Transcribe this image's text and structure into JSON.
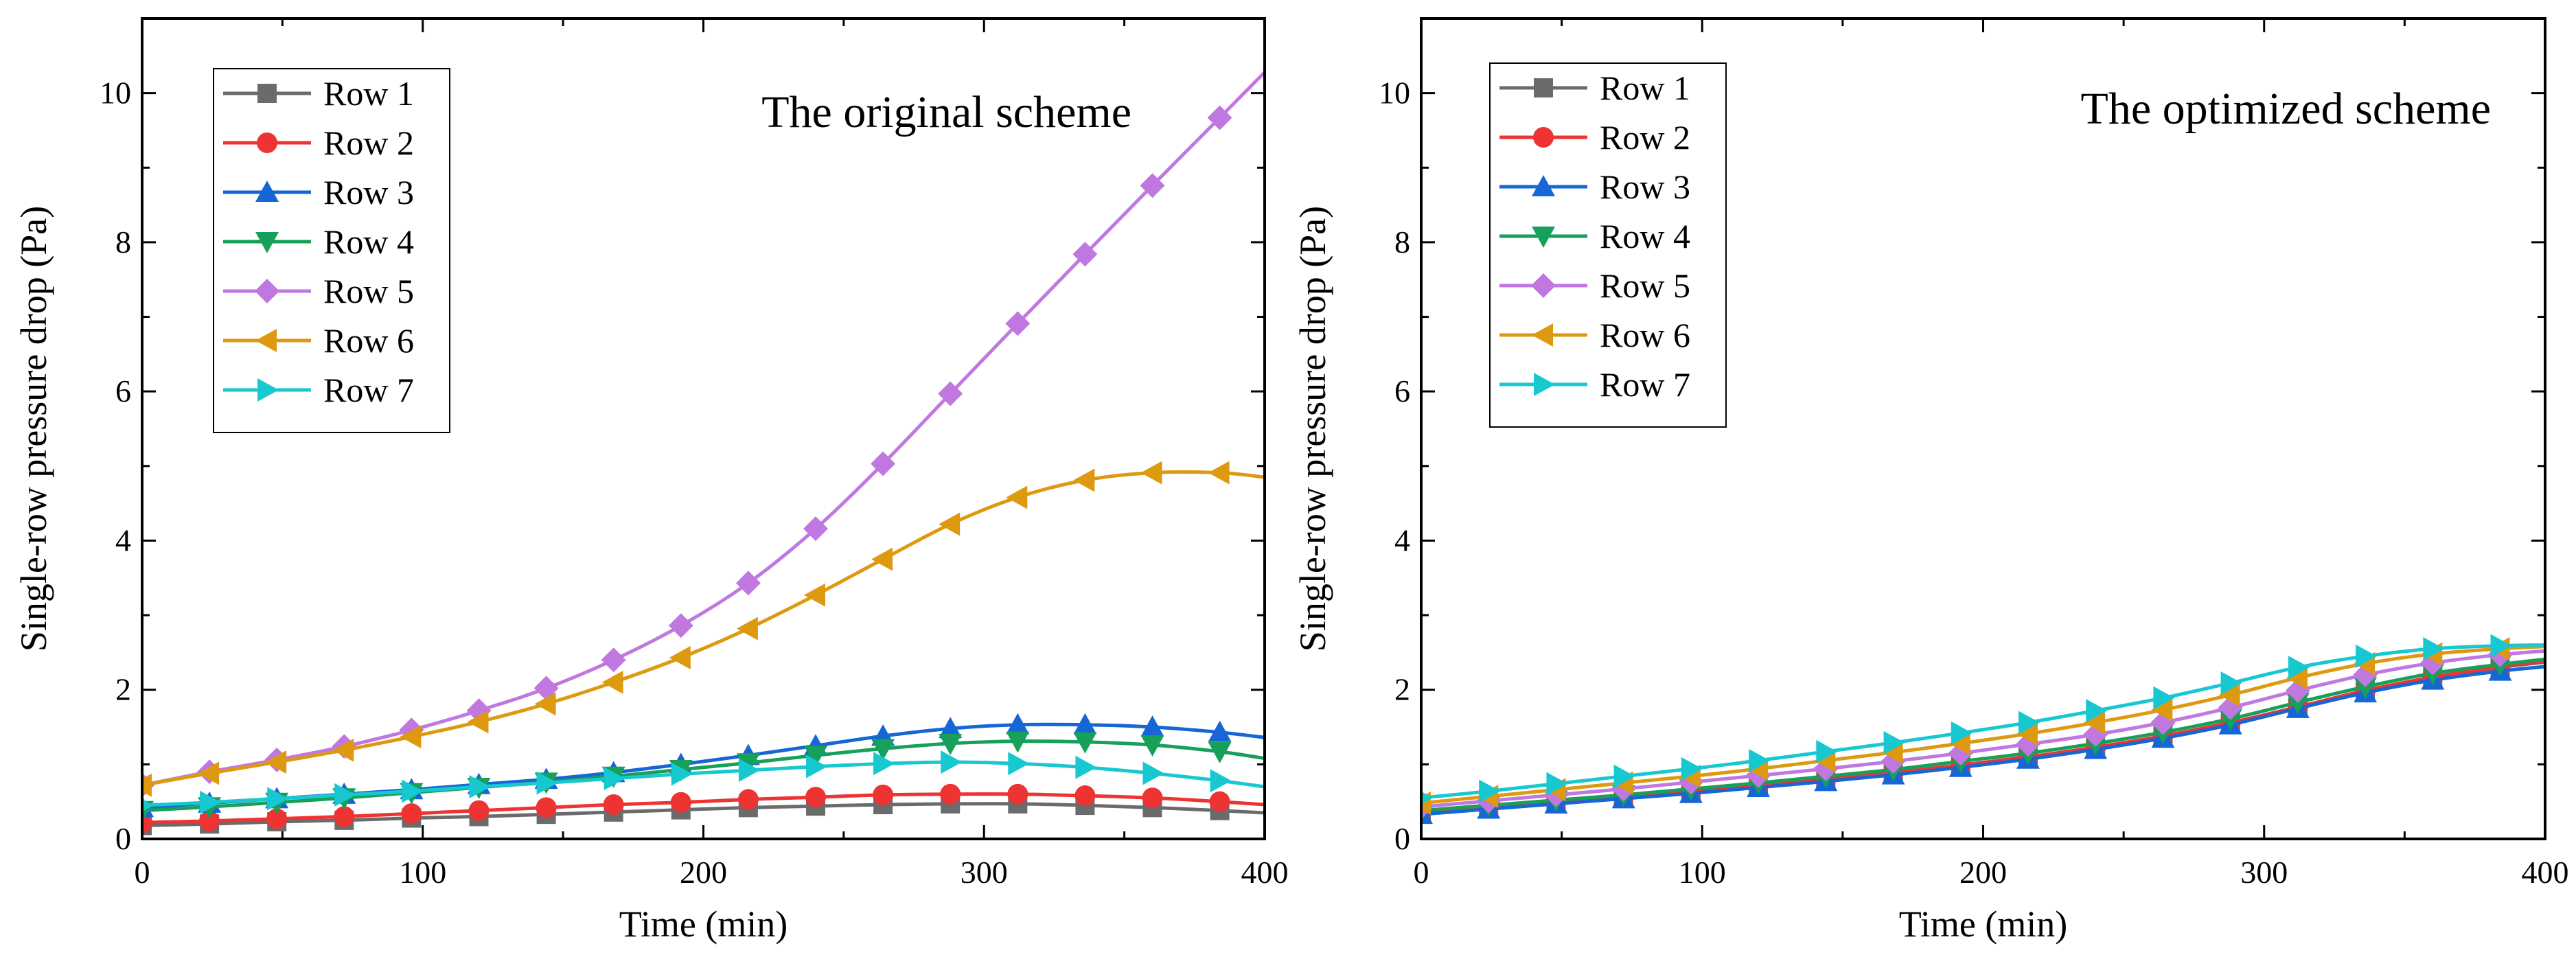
{
  "figure": {
    "description_free": true
  },
  "chart_data": [
    {
      "type": "line",
      "annotation": "The original scheme",
      "xlabel": "Time (min)",
      "ylabel": "Single-row pressure drop (Pa)",
      "xlim": [
        0,
        400
      ],
      "ylim": [
        0,
        11
      ],
      "xticks": [
        0,
        100,
        200,
        300,
        400
      ],
      "yticks": [
        0,
        2,
        4,
        6,
        8,
        10
      ],
      "x": [
        0,
        24,
        48,
        72,
        96,
        120,
        144,
        168,
        192,
        216,
        240,
        264,
        288,
        312,
        336,
        360,
        384,
        400
      ],
      "series": [
        {
          "name": "Row 1",
          "color": "#6b6b6b",
          "marker": "square",
          "values": [
            0.18,
            0.2,
            0.23,
            0.25,
            0.28,
            0.3,
            0.33,
            0.36,
            0.39,
            0.42,
            0.44,
            0.46,
            0.47,
            0.47,
            0.45,
            0.42,
            0.38,
            0.35
          ]
        },
        {
          "name": "Row 2",
          "color": "#ee3333",
          "marker": "circle",
          "values": [
            0.22,
            0.24,
            0.27,
            0.3,
            0.34,
            0.38,
            0.42,
            0.46,
            0.49,
            0.53,
            0.56,
            0.59,
            0.6,
            0.6,
            0.58,
            0.55,
            0.5,
            0.46
          ]
        },
        {
          "name": "Row 3",
          "color": "#1666d6",
          "marker": "triangle-up",
          "values": [
            0.42,
            0.48,
            0.54,
            0.6,
            0.66,
            0.73,
            0.8,
            0.89,
            1.0,
            1.12,
            1.25,
            1.38,
            1.48,
            1.53,
            1.53,
            1.5,
            1.43,
            1.36
          ]
        },
        {
          "name": "Row 4",
          "color": "#16a05a",
          "marker": "triangle-down",
          "values": [
            0.38,
            0.43,
            0.49,
            0.55,
            0.62,
            0.69,
            0.76,
            0.84,
            0.93,
            1.02,
            1.12,
            1.21,
            1.28,
            1.31,
            1.3,
            1.26,
            1.17,
            1.08
          ]
        },
        {
          "name": "Row 5",
          "color": "#c078e0",
          "marker": "diamond",
          "values": [
            0.72,
            0.9,
            1.06,
            1.24,
            1.46,
            1.72,
            2.02,
            2.4,
            2.86,
            3.43,
            4.16,
            5.03,
            5.97,
            6.91,
            7.84,
            8.76,
            9.67,
            10.28
          ]
        },
        {
          "name": "Row 6",
          "color": "#dd9a10",
          "marker": "triangle-left",
          "values": [
            0.72,
            0.88,
            1.03,
            1.19,
            1.37,
            1.57,
            1.81,
            2.1,
            2.43,
            2.82,
            3.27,
            3.75,
            4.22,
            4.58,
            4.81,
            4.91,
            4.91,
            4.85
          ]
        },
        {
          "name": "Row 7",
          "color": "#18c8d0",
          "marker": "triangle-right",
          "values": [
            0.45,
            0.49,
            0.54,
            0.59,
            0.64,
            0.7,
            0.75,
            0.81,
            0.87,
            0.92,
            0.97,
            1.01,
            1.03,
            1.01,
            0.96,
            0.88,
            0.78,
            0.7
          ]
        }
      ]
    },
    {
      "type": "line",
      "annotation": "The optimized scheme",
      "xlabel": "Time (min)",
      "ylabel": "Single-row pressure drop (Pa)",
      "xlim": [
        0,
        400
      ],
      "ylim": [
        0,
        11
      ],
      "xticks": [
        0,
        100,
        200,
        300,
        400
      ],
      "yticks": [
        0,
        2,
        4,
        6,
        8,
        10
      ],
      "x": [
        0,
        24,
        48,
        72,
        96,
        120,
        144,
        168,
        192,
        216,
        240,
        264,
        288,
        312,
        336,
        360,
        384,
        400
      ],
      "series": [
        {
          "name": "Row 1",
          "color": "#6b6b6b",
          "marker": "square",
          "values": [
            0.35,
            0.42,
            0.49,
            0.56,
            0.63,
            0.71,
            0.79,
            0.88,
            0.98,
            1.09,
            1.22,
            1.37,
            1.55,
            1.76,
            1.98,
            2.16,
            2.3,
            2.37
          ]
        },
        {
          "name": "Row 2",
          "color": "#ee3333",
          "marker": "circle",
          "values": [
            0.36,
            0.43,
            0.5,
            0.57,
            0.64,
            0.72,
            0.8,
            0.89,
            0.99,
            1.1,
            1.23,
            1.38,
            1.56,
            1.77,
            1.99,
            2.17,
            2.31,
            2.38
          ]
        },
        {
          "name": "Row 3",
          "color": "#1666d6",
          "marker": "triangle-up",
          "values": [
            0.33,
            0.4,
            0.47,
            0.54,
            0.61,
            0.69,
            0.77,
            0.86,
            0.96,
            1.07,
            1.2,
            1.35,
            1.53,
            1.75,
            1.96,
            2.13,
            2.25,
            2.31
          ]
        },
        {
          "name": "Row 4",
          "color": "#16a05a",
          "marker": "triangle-down",
          "values": [
            0.38,
            0.45,
            0.52,
            0.59,
            0.67,
            0.75,
            0.84,
            0.93,
            1.04,
            1.15,
            1.28,
            1.43,
            1.61,
            1.83,
            2.04,
            2.22,
            2.34,
            2.41
          ]
        },
        {
          "name": "Row 5",
          "color": "#c078e0",
          "marker": "diamond",
          "values": [
            0.43,
            0.51,
            0.59,
            0.67,
            0.76,
            0.85,
            0.94,
            1.04,
            1.15,
            1.27,
            1.4,
            1.56,
            1.76,
            1.99,
            2.2,
            2.36,
            2.47,
            2.52
          ]
        },
        {
          "name": "Row 6",
          "color": "#dd9a10",
          "marker": "triangle-left",
          "values": [
            0.48,
            0.57,
            0.66,
            0.75,
            0.84,
            0.94,
            1.05,
            1.16,
            1.28,
            1.41,
            1.56,
            1.73,
            1.93,
            2.16,
            2.35,
            2.48,
            2.55,
            2.58
          ]
        },
        {
          "name": "Row 7",
          "color": "#18c8d0",
          "marker": "triangle-right",
          "values": [
            0.55,
            0.64,
            0.74,
            0.84,
            0.94,
            1.05,
            1.17,
            1.29,
            1.42,
            1.56,
            1.72,
            1.89,
            2.09,
            2.3,
            2.45,
            2.55,
            2.59,
            2.6
          ]
        }
      ]
    }
  ]
}
